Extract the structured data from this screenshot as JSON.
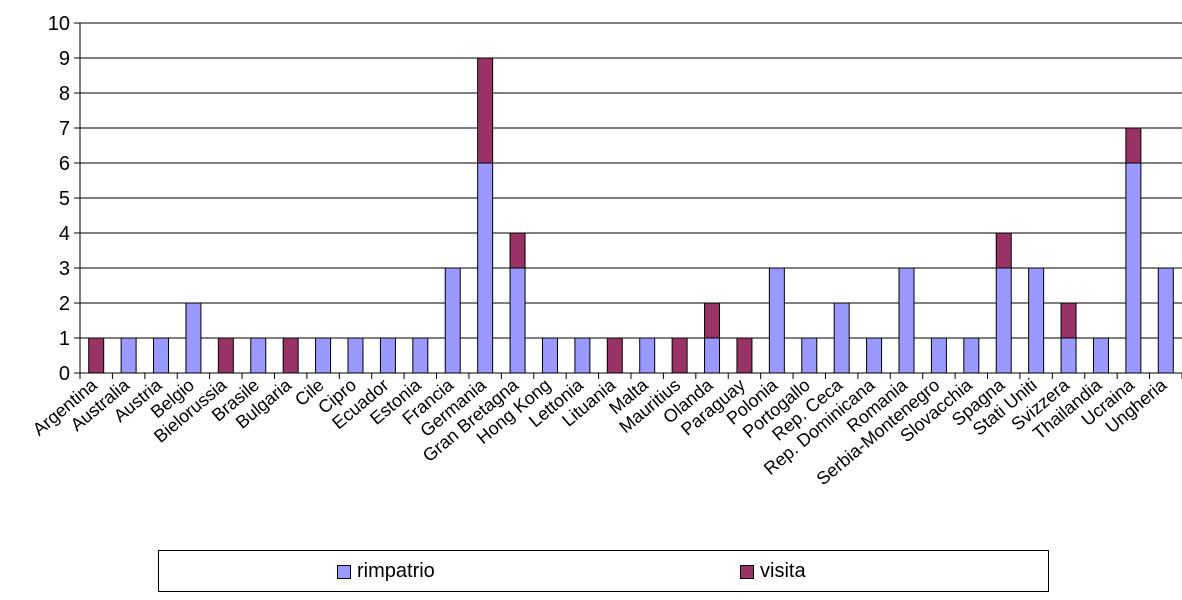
{
  "chart_data": {
    "type": "bar",
    "stacked": true,
    "categories": [
      "Argentina",
      "Australia",
      "Austria",
      "Belgio",
      "Bielorussia",
      "Brasile",
      "Bulgaria",
      "Cile",
      "Cipro",
      "Ecuador",
      "Estonia",
      "Francia",
      "Germania",
      "Gran Bretagna",
      "Hong Kong",
      "Lettonia",
      "Lituania",
      "Malta",
      "Mauritius",
      "Olanda",
      "Paraguay",
      "Polonia",
      "Portogallo",
      "Rep. Ceca",
      "Rep. Dominicana",
      "Romania",
      "Serbia-Montenegro",
      "Slovacchia",
      "Spagna",
      "Stati Uniti",
      "Svizzera",
      "Thailandia",
      "Ucraina",
      "Ungheria"
    ],
    "series": [
      {
        "name": "rimpatrio",
        "color": "#9999ff",
        "values": [
          0,
          1,
          1,
          2,
          0,
          1,
          0,
          1,
          1,
          1,
          1,
          3,
          6,
          3,
          1,
          1,
          0,
          1,
          0,
          1,
          0,
          3,
          1,
          2,
          1,
          3,
          1,
          1,
          3,
          3,
          1,
          1,
          6,
          3
        ]
      },
      {
        "name": "visita",
        "color": "#993366",
        "values": [
          1,
          0,
          0,
          0,
          1,
          0,
          1,
          0,
          0,
          0,
          0,
          0,
          3,
          1,
          0,
          0,
          1,
          0,
          1,
          1,
          1,
          0,
          0,
          0,
          0,
          0,
          0,
          0,
          1,
          0,
          1,
          0,
          1,
          0
        ]
      }
    ],
    "ylim": [
      0,
      10
    ],
    "yticks": [
      "0",
      "1",
      "2",
      "3",
      "4",
      "5",
      "6",
      "7",
      "8",
      "9",
      "10"
    ],
    "grid": true,
    "legend_position": "bottom"
  }
}
